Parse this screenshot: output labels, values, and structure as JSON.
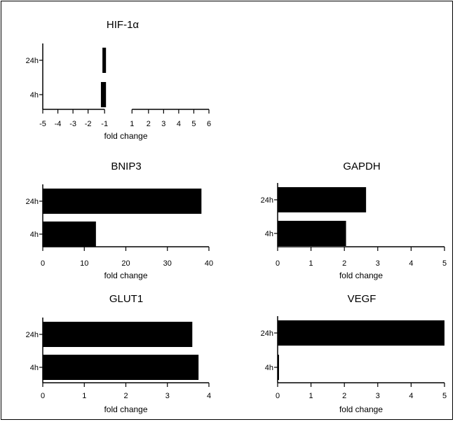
{
  "chart_data": [
    {
      "type": "bar",
      "orientation": "horizontal",
      "title": "HIF-1α",
      "xlabel": "fold change",
      "categories": [
        "24h",
        "4h"
      ],
      "values": [
        -1.05,
        -1.15
      ],
      "xlim": [
        -5,
        6
      ],
      "xticks": [
        -5,
        -4,
        -3,
        -2,
        -1,
        1,
        2,
        3,
        4,
        5,
        6
      ],
      "xtick_labels": [
        "-5",
        "-4",
        "-3",
        "-2",
        "-1",
        "1",
        "2",
        "3",
        "4",
        "5",
        "6"
      ],
      "grid": false
    },
    {
      "type": "bar",
      "orientation": "horizontal",
      "title": "BNIP3",
      "xlabel": "fold change",
      "categories": [
        "24h",
        "4h"
      ],
      "values": [
        38.2,
        12.8
      ],
      "xlim": [
        0,
        40
      ],
      "xticks": [
        0,
        10,
        20,
        30,
        40
      ],
      "xtick_labels": [
        "0",
        "10",
        "20",
        "30",
        "40"
      ],
      "grid": false
    },
    {
      "type": "bar",
      "orientation": "horizontal",
      "title": "GAPDH",
      "xlabel": "fold change",
      "categories": [
        "24h",
        "4h"
      ],
      "values": [
        2.65,
        2.05
      ],
      "xlim": [
        0,
        5
      ],
      "xticks": [
        0,
        1,
        2,
        3,
        4,
        5
      ],
      "xtick_labels": [
        "0",
        "1",
        "2",
        "3",
        "4",
        "5"
      ],
      "grid": false
    },
    {
      "type": "bar",
      "orientation": "horizontal",
      "title": "GLUT1",
      "xlabel": "fold change",
      "categories": [
        "24h",
        "4h"
      ],
      "values": [
        3.6,
        3.75
      ],
      "xlim": [
        0,
        4
      ],
      "xticks": [
        0,
        1,
        2,
        3,
        4
      ],
      "xtick_labels": [
        "0",
        "1",
        "2",
        "3",
        "4"
      ],
      "grid": false
    },
    {
      "type": "bar",
      "orientation": "horizontal",
      "title": "VEGF",
      "xlabel": "fold change",
      "categories": [
        "24h",
        "4h"
      ],
      "values": [
        5.0,
        0.03
      ],
      "xlim": [
        0,
        5
      ],
      "xticks": [
        0,
        1,
        2,
        3,
        4,
        5
      ],
      "xtick_labels": [
        "0",
        "1",
        "2",
        "3",
        "4",
        "5"
      ],
      "grid": false
    }
  ],
  "colors": {
    "bar": "#000000",
    "axis": "#000000",
    "text": "#000000"
  }
}
